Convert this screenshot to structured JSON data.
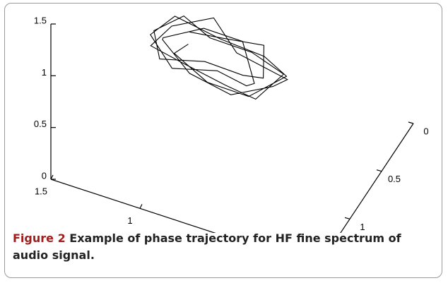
{
  "chart_data": {
    "type": "line3d",
    "caption_label": "Figure 2",
    "caption": "Example of phase trajectory for HF fine spectrum of audio signal.",
    "color": "#000000",
    "xlim": [
      1.5,
      0
    ],
    "xticks": [
      1.5,
      1,
      0.5,
      0
    ],
    "ylim": [
      1.5,
      0
    ],
    "yticks": [
      1.5,
      1,
      0.5,
      0
    ],
    "zlim": [
      0,
      1.5
    ],
    "zticks": [
      0,
      0.5,
      1,
      1.5
    ],
    "x": [
      0.9,
      0.7,
      0.5,
      0.45,
      0.6,
      0.85,
      1.05,
      1.1,
      0.95,
      0.75,
      0.55,
      0.4,
      0.5,
      0.7,
      0.95,
      1.1,
      1.0,
      0.8,
      0.6,
      0.35,
      0.45,
      0.65,
      0.9,
      1.08,
      1.02,
      0.82,
      0.62,
      0.5,
      0.58,
      0.78,
      0.98,
      1.12,
      1.0,
      0.7,
      0.48,
      0.38,
      0.55,
      0.8,
      1.0,
      0.9
    ],
    "y": [
      1.0,
      1.05,
      0.95,
      1.1,
      1.0,
      0.9,
      1.05,
      1.0,
      0.95,
      1.1,
      1.0,
      0.92,
      1.08,
      1.0,
      0.95,
      1.05,
      1.0,
      0.9,
      1.1,
      1.0,
      0.95,
      1.05,
      1.0,
      0.92,
      1.08,
      1.0,
      0.95,
      1.1,
      1.0,
      0.9,
      1.05,
      1.0,
      0.95,
      1.08,
      1.0,
      0.93,
      1.05,
      1.0,
      0.96,
      1.02
    ],
    "z": [
      1.3,
      1.4,
      1.35,
      1.2,
      1.05,
      0.95,
      1.0,
      1.2,
      1.38,
      1.42,
      1.3,
      1.1,
      0.95,
      0.9,
      0.92,
      1.1,
      1.3,
      1.4,
      1.36,
      1.15,
      0.98,
      0.88,
      0.9,
      1.05,
      1.25,
      1.38,
      1.32,
      1.12,
      0.96,
      0.9,
      0.95,
      1.15,
      1.35,
      1.42,
      1.3,
      1.1,
      0.92,
      0.87,
      1.0,
      1.2
    ]
  }
}
